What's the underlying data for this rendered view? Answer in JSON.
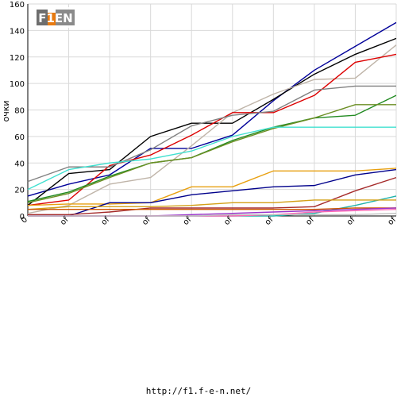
{
  "footer_url": "http://f1.f-e-n.net/",
  "logo_text": "F1EN",
  "chart_data": {
    "type": "line",
    "ylabel": "очки",
    "ylim": [
      0,
      160
    ],
    "yticks": [
      0,
      20,
      40,
      60,
      80,
      100,
      120,
      140,
      160
    ],
    "x": [
      0,
      1,
      2,
      3,
      4,
      5,
      6,
      7,
      8,
      9
    ],
    "x_tick_labels": [
      "0",
      "of",
      "of",
      "of",
      "of",
      "of",
      "of",
      "of",
      "of",
      "of"
    ],
    "grid": true,
    "series": [
      {
        "color": "#000099",
        "values": [
          15,
          24,
          31,
          51,
          51,
          61,
          87,
          110,
          128,
          146
        ]
      },
      {
        "color": "#000000",
        "values": [
          8,
          32,
          35,
          60,
          70,
          70,
          88,
          107,
          122,
          134
        ]
      },
      {
        "color": "#bfb4a8",
        "values": [
          2,
          8,
          24,
          29,
          53,
          78,
          92,
          103,
          104,
          129
        ]
      },
      {
        "color": "#dd0000",
        "values": [
          8,
          12,
          38,
          46,
          61,
          78,
          78,
          91,
          116,
          122
        ]
      },
      {
        "color": "#808080",
        "values": [
          26,
          37,
          37,
          50,
          68,
          76,
          79,
          95,
          98,
          98
        ]
      },
      {
        "color": "#228b22",
        "values": [
          11,
          18,
          30,
          40,
          44,
          57,
          67,
          74,
          76,
          91
        ]
      },
      {
        "color": "#6b8e23",
        "values": [
          10,
          17,
          29,
          40,
          44,
          56,
          66,
          74,
          84,
          84
        ]
      },
      {
        "color": "#40e0d0",
        "values": [
          20,
          35,
          40,
          43,
          49,
          60,
          67,
          67,
          67,
          67
        ]
      },
      {
        "color": "#e8a010",
        "values": [
          8,
          9,
          9,
          10,
          22,
          22,
          34,
          34,
          34,
          36
        ]
      },
      {
        "color": "#00008b",
        "values": [
          0,
          0,
          10,
          10,
          16,
          19,
          22,
          23,
          31,
          35
        ]
      },
      {
        "color": "#a52a2a",
        "values": [
          1,
          1,
          3,
          6,
          6,
          6,
          6,
          7,
          19,
          29
        ]
      },
      {
        "color": "#20b2aa",
        "values": [
          0,
          0,
          0,
          0,
          0,
          0,
          0,
          2,
          8,
          15
        ]
      },
      {
        "color": "#d4a017",
        "values": [
          5,
          7,
          7,
          7,
          8,
          10,
          10,
          12,
          12,
          12
        ]
      },
      {
        "color": "#cc5500",
        "values": [
          5,
          5,
          5,
          5,
          5,
          5,
          5,
          5,
          6,
          6
        ]
      },
      {
        "color": "#9932cc",
        "values": [
          0,
          0,
          0,
          0,
          1,
          2,
          3,
          4,
          5,
          6
        ]
      },
      {
        "color": "#ff69b4",
        "values": [
          0,
          0,
          0,
          0,
          0,
          0,
          1,
          3,
          4,
          5
        ]
      },
      {
        "color": "#c0c0c0",
        "values": [
          0,
          0,
          0,
          0,
          0,
          1,
          1,
          1,
          1,
          2
        ]
      }
    ]
  }
}
